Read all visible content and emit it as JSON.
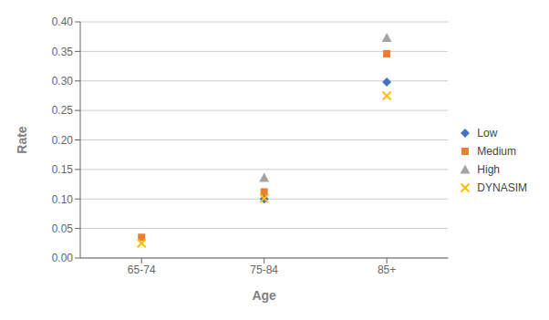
{
  "chart_data": {
    "type": "scatter",
    "xlabel": "Age",
    "ylabel": "Rate",
    "categories": [
      "65-74",
      "75-84",
      "85+"
    ],
    "series": [
      {
        "name": "Low",
        "color": "#4472C4",
        "marker": "diamond",
        "values": [
          null,
          0.1,
          0.298
        ]
      },
      {
        "name": "Medium",
        "color": "#ED7D31",
        "marker": "square",
        "values": [
          0.035,
          0.112,
          0.346
        ]
      },
      {
        "name": "High",
        "color": "#A5A5A5",
        "marker": "triangle",
        "values": [
          null,
          0.136,
          0.373
        ]
      },
      {
        "name": "DYNASIM",
        "color": "#FFC000",
        "marker": "x",
        "values": [
          0.025,
          0.101,
          0.275
        ]
      }
    ],
    "ylim": [
      0.0,
      0.4
    ],
    "yticks": [
      {
        "value": 0.0,
        "label": "0.00"
      },
      0.05,
      {
        "value": 0.1,
        "label": "0.10"
      },
      0.15,
      {
        "value": 0.2,
        "label": "0.20"
      },
      0.25,
      {
        "value": 0.3,
        "label": "0.30"
      },
      0.35,
      {
        "value": 0.4,
        "label": "0.40"
      }
    ],
    "grid": true,
    "legend": "right"
  }
}
